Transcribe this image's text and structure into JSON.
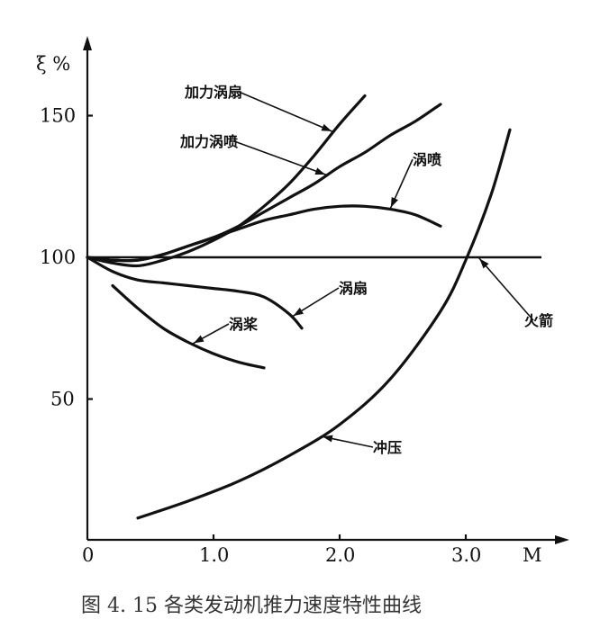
{
  "caption": "图 4. 15 各类发动机推力速度特性曲线",
  "chart_data": {
    "type": "line",
    "title": "",
    "xlabel": "M",
    "ylabel": "ξ %",
    "xlim": [
      0,
      3.6
    ],
    "ylim": [
      -10,
      175
    ],
    "xticks": [
      {
        "value": 0,
        "label": "0"
      },
      {
        "value": 1.0,
        "label": "1.0"
      },
      {
        "value": 2.0,
        "label": "2.0"
      },
      {
        "value": 3.0,
        "label": "3.0"
      }
    ],
    "yticks": [
      {
        "value": 150,
        "label": "150"
      },
      {
        "value": 100,
        "label": "100"
      },
      {
        "value": 50,
        "label": "50"
      }
    ],
    "grid": false,
    "series": [
      {
        "name": "加力涡扇",
        "x": [
          0,
          0.2,
          0.4,
          0.6,
          0.8,
          1.0,
          1.2,
          1.4,
          1.6,
          1.8,
          2.0,
          2.2
        ],
        "y": [
          100,
          98,
          97,
          99,
          102,
          106,
          111,
          118,
          126,
          136,
          147,
          157
        ],
        "arrow_at": 1.95
      },
      {
        "name": "加力涡喷",
        "x": [
          0,
          0.2,
          0.4,
          0.6,
          0.8,
          1.0,
          1.2,
          1.4,
          1.6,
          1.8,
          2.0,
          2.2,
          2.4,
          2.6,
          2.8
        ],
        "y": [
          100,
          99,
          99,
          101,
          104,
          107,
          111,
          116,
          121,
          126,
          132,
          137,
          143,
          148,
          154
        ],
        "arrow_at": 1.9
      },
      {
        "name": "涡喷",
        "x": [
          0,
          0.2,
          0.4,
          0.6,
          0.8,
          1.0,
          1.2,
          1.4,
          1.6,
          1.8,
          2.0,
          2.2,
          2.4,
          2.6,
          2.8
        ],
        "y": [
          100,
          99,
          99,
          101,
          104,
          107,
          110,
          113,
          115,
          117,
          118,
          118,
          117,
          115,
          111
        ],
        "arrow_at": 2.4
      },
      {
        "name": "涡扇",
        "x": [
          0,
          0.2,
          0.4,
          0.6,
          0.8,
          1.0,
          1.2,
          1.4,
          1.6,
          1.7
        ],
        "y": [
          100,
          95,
          92,
          91,
          90,
          89,
          88,
          86,
          80,
          75
        ],
        "arrow_at": 1.62
      },
      {
        "name": "涡桨",
        "x": [
          0.2,
          0.4,
          0.6,
          0.8,
          1.0,
          1.2,
          1.4
        ],
        "y": [
          90,
          82,
          75,
          70,
          66,
          63,
          61
        ],
        "arrow_at": 0.83
      },
      {
        "name": "冲压",
        "x": [
          0.4,
          0.8,
          1.2,
          1.6,
          2.0,
          2.4,
          2.8,
          3.0,
          3.2,
          3.35
        ],
        "y": [
          8,
          14,
          21,
          30,
          41,
          57,
          81,
          99,
          122,
          145
        ],
        "arrow_at": 1.85
      },
      {
        "name": "火箭",
        "x": [
          0,
          3.6
        ],
        "y": [
          100,
          100
        ],
        "arrow_at": 3.1
      }
    ],
    "annotations": [
      {
        "text": "加力涡扇",
        "series": "加力涡扇"
      },
      {
        "text": "加力涡喷",
        "series": "加力涡喷"
      },
      {
        "text": "涡喷",
        "series": "涡喷"
      },
      {
        "text": "涡扇",
        "series": "涡扇"
      },
      {
        "text": "涡桨",
        "series": "涡桨"
      },
      {
        "text": "冲压",
        "series": "冲压"
      },
      {
        "text": "火箭",
        "series": "火箭"
      }
    ]
  }
}
